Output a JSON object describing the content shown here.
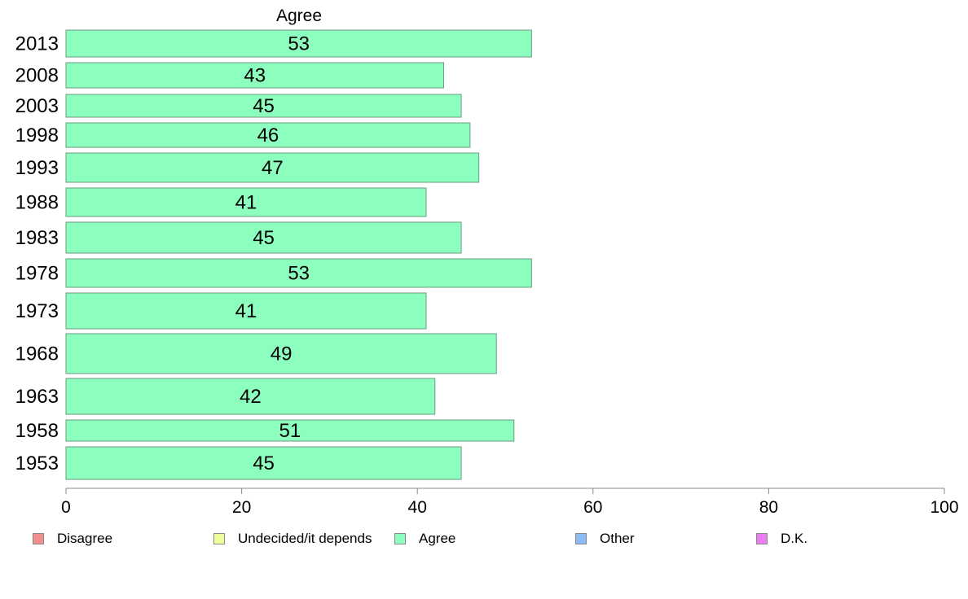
{
  "chart_data": {
    "type": "bar",
    "orientation": "horizontal",
    "title": "Agree",
    "categories": [
      "2013",
      "2008",
      "2003",
      "1998",
      "1993",
      "1988",
      "1983",
      "1978",
      "1973",
      "1968",
      "1963",
      "1958",
      "1953"
    ],
    "series": [
      {
        "name": "Agree",
        "values": [
          53,
          43,
          45,
          46,
          47,
          41,
          45,
          53,
          41,
          49,
          42,
          51,
          45
        ]
      }
    ],
    "data_labels": [
      "53",
      "43",
      "45",
      "46",
      "47",
      "41",
      "45",
      "53",
      "41",
      "49",
      "42",
      "51",
      "45"
    ],
    "xlim": [
      0,
      100
    ],
    "xticks": [
      "0",
      "20",
      "40",
      "60",
      "80",
      "100"
    ],
    "grid": false,
    "legend_position": "bottom",
    "legend": [
      {
        "label": "Disagree",
        "color": "#f28e8e"
      },
      {
        "label": "Undecided/it depends",
        "color": "#eeff99"
      },
      {
        "label": "Agree",
        "color": "#8cffbe"
      },
      {
        "label": "Other",
        "color": "#8cbcf5"
      },
      {
        "label": "D.K.",
        "color": "#e87ef0"
      }
    ],
    "bar_color": "#8cffbe",
    "bar_border_color": "#6a9b82"
  }
}
